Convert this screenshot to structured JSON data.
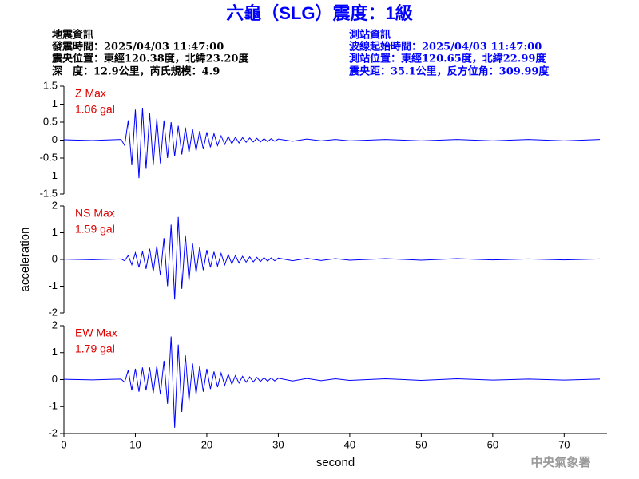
{
  "header": {
    "title": "六龜（SLG）震度：1級",
    "left": [
      "地震資訊",
      "發震時間：2025/04/03 11:47:00",
      "震央位置：東經120.38度，北緯23.20度",
      "深　度：12.9公里，芮氏規模：4.9"
    ],
    "right": [
      "測站資訊",
      "波線起始時間：2025/04/03 11:47:00",
      "測站位置：東經120.65度，北緯22.99度",
      "震央距：35.1公里，反方位角：309.99度"
    ],
    "watermark": "中央氣象署"
  },
  "chart_data": [
    {
      "type": "line",
      "annotation": [
        "Z Max",
        "1.06 gal"
      ],
      "color": "#0000ff",
      "xlim": [
        0,
        76
      ],
      "ylim": [
        -1.5,
        1.5
      ],
      "yticks": [
        -1.5,
        -1,
        -0.5,
        0,
        0.5,
        1,
        1.5
      ],
      "x": [
        0,
        4,
        8,
        8.5,
        9,
        9.5,
        10,
        10.5,
        11,
        11.5,
        12,
        12.5,
        13,
        13.5,
        14,
        14.5,
        15,
        15.5,
        16,
        16.5,
        17,
        17.5,
        18,
        18.5,
        19,
        19.5,
        20,
        20.5,
        21,
        21.5,
        22,
        22.5,
        23,
        23.5,
        24,
        24.5,
        25,
        25.5,
        26,
        26.5,
        27,
        27.5,
        28,
        28.5,
        29,
        29.5,
        30,
        32,
        34,
        36,
        38,
        40,
        45,
        50,
        55,
        60,
        65,
        70,
        75
      ],
      "values": [
        0.01,
        -0.01,
        0.02,
        -0.15,
        0.55,
        -0.7,
        0.85,
        -1.06,
        0.9,
        -0.8,
        0.75,
        -0.7,
        0.6,
        -0.65,
        0.55,
        -0.5,
        0.5,
        -0.45,
        0.4,
        -0.4,
        0.35,
        -0.35,
        0.3,
        -0.3,
        0.25,
        -0.25,
        0.22,
        -0.2,
        0.18,
        -0.15,
        0.12,
        -0.12,
        0.1,
        -0.1,
        0.08,
        -0.08,
        0.07,
        -0.06,
        0.06,
        -0.05,
        0.05,
        -0.05,
        0.04,
        -0.04,
        0.04,
        -0.03,
        0.03,
        -0.03,
        0.03,
        -0.02,
        0.02,
        -0.02,
        0.02,
        -0.02,
        0.02,
        -0.02,
        0.02,
        -0.02,
        0.02
      ]
    },
    {
      "type": "line",
      "annotation": [
        "NS Max",
        "1.59 gal"
      ],
      "color": "#0000ff",
      "ylabel": "acceleration",
      "xlim": [
        0,
        76
      ],
      "ylim": [
        -2,
        2
      ],
      "yticks": [
        -2,
        -1,
        0,
        1,
        2
      ],
      "x": [
        0,
        4,
        8,
        8.5,
        9,
        9.5,
        10,
        10.5,
        11,
        11.5,
        12,
        12.5,
        13,
        13.5,
        14,
        14.5,
        15,
        15.5,
        16,
        16.5,
        17,
        17.5,
        18,
        18.5,
        19,
        19.5,
        20,
        20.5,
        21,
        21.5,
        22,
        22.5,
        23,
        23.5,
        24,
        24.5,
        25,
        25.5,
        26,
        26.5,
        27,
        27.5,
        28,
        28.5,
        29,
        29.5,
        30,
        32,
        34,
        36,
        38,
        40,
        45,
        50,
        55,
        60,
        65,
        70,
        75
      ],
      "values": [
        0.01,
        -0.01,
        0.02,
        -0.05,
        0.15,
        -0.2,
        0.25,
        -0.3,
        0.3,
        -0.35,
        0.4,
        -0.45,
        0.5,
        -0.6,
        0.8,
        -1.0,
        1.3,
        -1.5,
        1.59,
        -1.1,
        0.9,
        -0.8,
        0.6,
        -0.5,
        0.45,
        -0.4,
        0.35,
        -0.3,
        0.28,
        -0.25,
        0.22,
        -0.2,
        0.18,
        -0.16,
        0.15,
        -0.13,
        0.12,
        -0.1,
        0.1,
        -0.09,
        0.08,
        -0.08,
        0.07,
        -0.06,
        0.06,
        -0.05,
        0.05,
        -0.05,
        0.04,
        -0.04,
        0.03,
        -0.03,
        0.03,
        -0.03,
        0.03,
        -0.02,
        0.02,
        -0.02,
        0.02
      ]
    },
    {
      "type": "line",
      "annotation": [
        "EW Max",
        "1.79 gal"
      ],
      "color": "#0000ff",
      "xlabel": "second",
      "xlim": [
        0,
        76
      ],
      "xticks": [
        0,
        10,
        20,
        30,
        40,
        50,
        60,
        70
      ],
      "ylim": [
        -2,
        2
      ],
      "yticks": [
        -2,
        -1,
        0,
        1,
        2
      ],
      "x": [
        0,
        4,
        8,
        8.5,
        9,
        9.5,
        10,
        10.5,
        11,
        11.5,
        12,
        12.5,
        13,
        13.5,
        14,
        14.5,
        15,
        15.5,
        16,
        16.5,
        17,
        17.5,
        18,
        18.5,
        19,
        19.5,
        20,
        20.5,
        21,
        21.5,
        22,
        22.5,
        23,
        23.5,
        24,
        24.5,
        25,
        25.5,
        26,
        26.5,
        27,
        27.5,
        28,
        28.5,
        29,
        29.5,
        30,
        32,
        34,
        36,
        38,
        40,
        45,
        50,
        55,
        60,
        65,
        70,
        75
      ],
      "values": [
        0.01,
        -0.01,
        0.02,
        -0.1,
        0.35,
        -0.4,
        0.4,
        -0.45,
        0.45,
        -0.4,
        0.45,
        -0.5,
        0.5,
        -0.55,
        0.7,
        -0.9,
        1.6,
        -1.79,
        1.3,
        -1.2,
        0.9,
        -0.8,
        0.6,
        -0.55,
        0.5,
        -0.45,
        0.4,
        -0.35,
        0.3,
        -0.28,
        0.25,
        -0.22,
        0.2,
        -0.18,
        0.15,
        -0.13,
        0.12,
        -0.1,
        0.1,
        -0.09,
        0.08,
        -0.07,
        0.07,
        -0.06,
        0.06,
        -0.05,
        0.05,
        -0.05,
        0.04,
        -0.04,
        0.03,
        -0.03,
        0.03,
        -0.03,
        0.03,
        -0.02,
        0.02,
        -0.02,
        0.02
      ]
    }
  ]
}
